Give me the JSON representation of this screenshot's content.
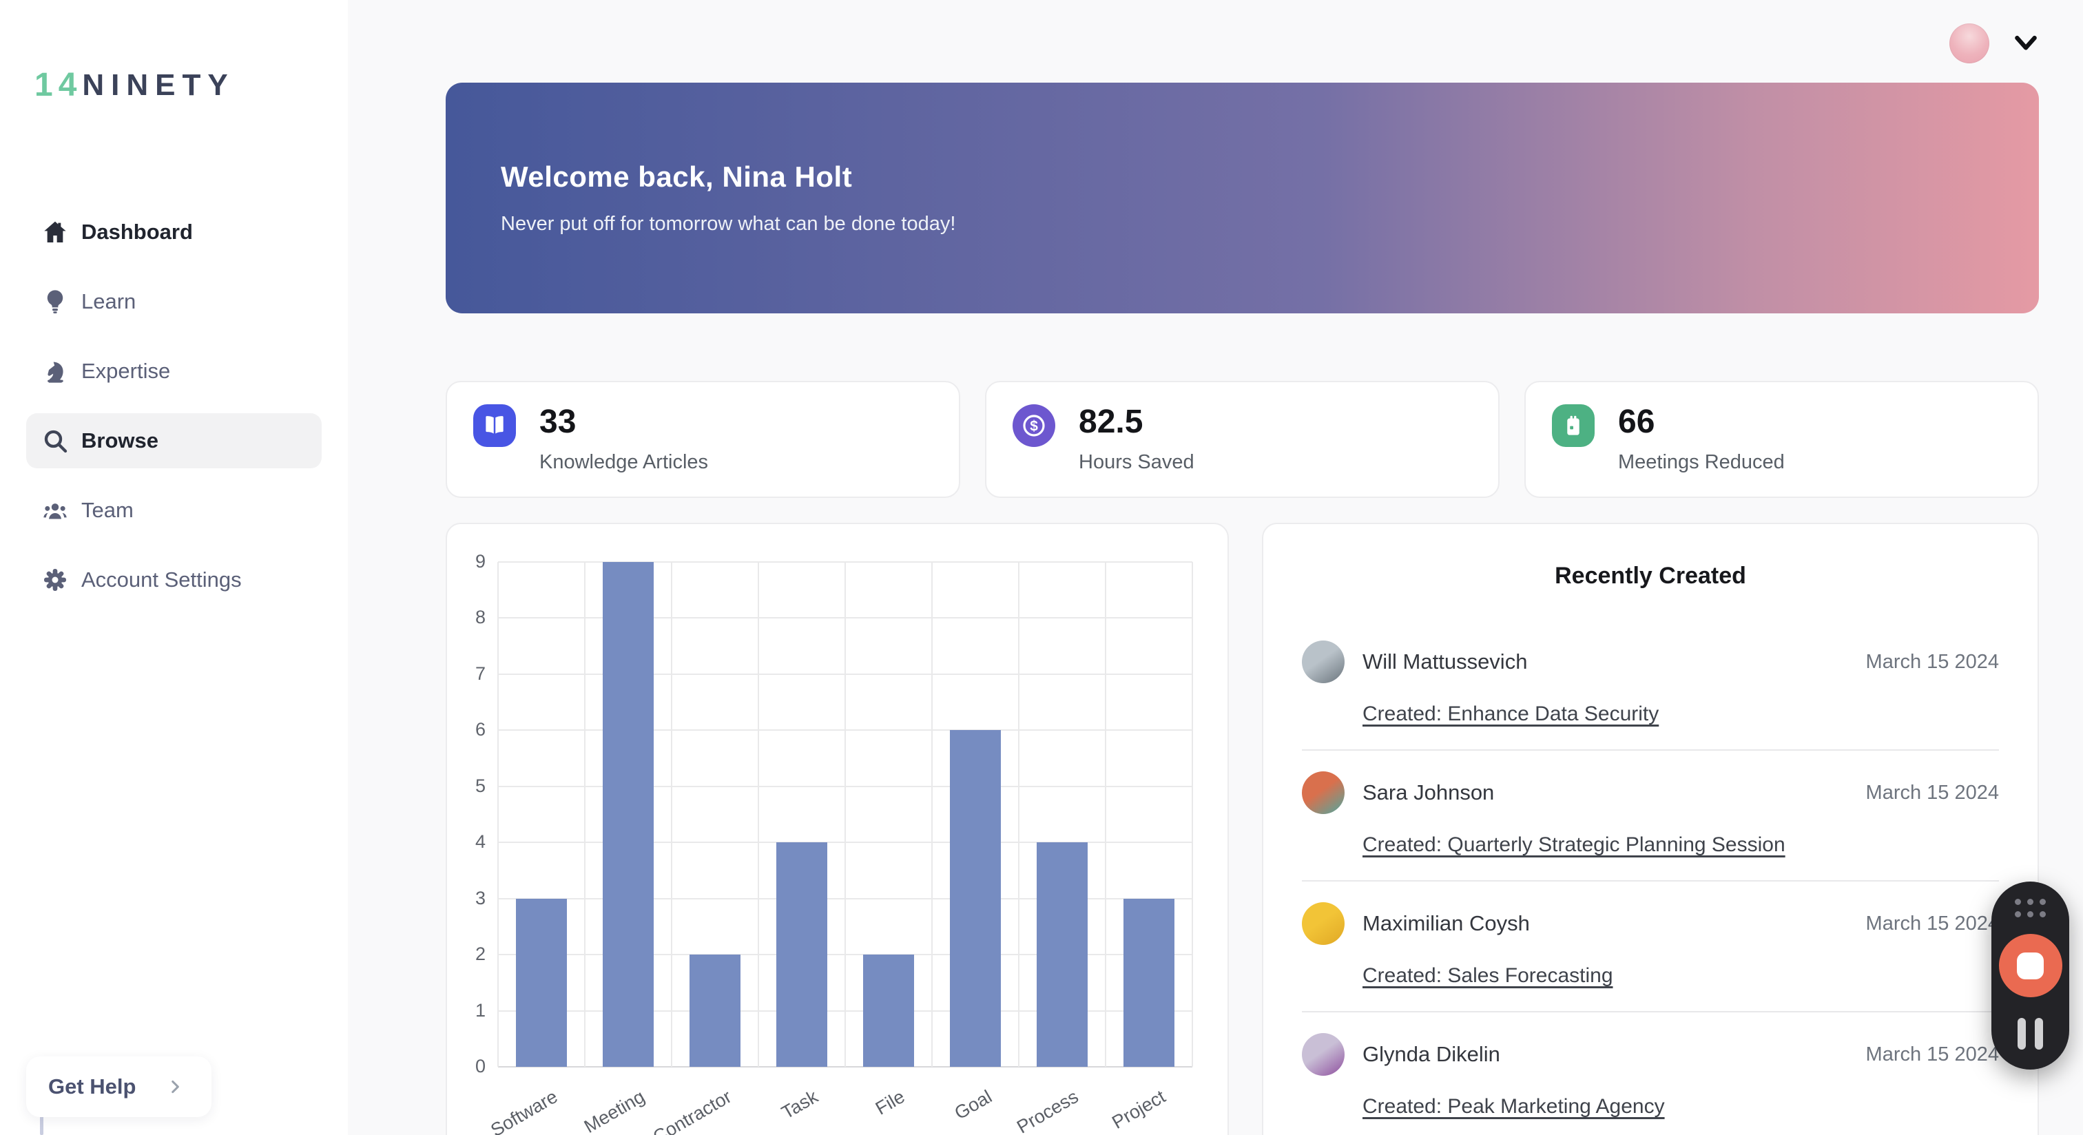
{
  "brand": {
    "part1": "14",
    "part2": "NINETY"
  },
  "sidebar": {
    "items": [
      {
        "label": "Dashboard",
        "icon": "home-icon"
      },
      {
        "label": "Learn",
        "icon": "lightbulb-icon"
      },
      {
        "label": "Expertise",
        "icon": "knight-icon"
      },
      {
        "label": "Browse",
        "icon": "search-icon",
        "selected": true
      },
      {
        "label": "Team",
        "icon": "team-icon"
      },
      {
        "label": "Account Settings",
        "icon": "gear-icon"
      }
    ],
    "get_help_label": "Get Help"
  },
  "banner": {
    "title": "Welcome back, Nina Holt",
    "subtitle": "Never put off for tomorrow what can be done today!",
    "gradient_from": "#46589a",
    "gradient_mid": "#7570a6",
    "gradient_late": "#c08fa6",
    "gradient_to": "#e59aa4"
  },
  "stats": [
    {
      "value": "33",
      "label": "Knowledge Articles",
      "icon": "book-icon",
      "color": "#4855e4",
      "shape": "rounded"
    },
    {
      "value": "82.5",
      "label": "Hours Saved",
      "icon": "dollar-icon",
      "color": "#6d57cf",
      "shape": "circle"
    },
    {
      "value": "66",
      "label": "Meetings Reduced",
      "icon": "calendar-icon",
      "color": "#4db183",
      "shape": "rounded"
    }
  ],
  "chart_data": {
    "type": "bar",
    "categories": [
      "Software",
      "Meeting",
      "Contractor",
      "Task",
      "File",
      "Goal",
      "Process",
      "Project"
    ],
    "values": [
      3,
      9,
      2,
      4,
      2,
      6,
      4,
      3
    ],
    "title": "",
    "xlabel": "",
    "ylabel": "",
    "ylim": [
      0,
      9
    ],
    "yticks": [
      0,
      1,
      2,
      3,
      4,
      5,
      6,
      7,
      8,
      9
    ],
    "grid": true,
    "legend": false,
    "bar_color": "#768cc1"
  },
  "recent": {
    "title": "Recently Created",
    "items": [
      {
        "name": "Will Mattussevich",
        "date": "March 15 2024",
        "link": "Created: Enhance Data Security",
        "avatar_colors": [
          "#b9c2c9",
          "#6a747c"
        ]
      },
      {
        "name": "Sara Johnson",
        "date": "March 15 2024",
        "link": "Created: Quarterly Strategic Planning Session",
        "avatar_colors": [
          "#d9704d",
          "#4fa8a0"
        ]
      },
      {
        "name": "Maximilian Coysh",
        "date": "March 15 2024",
        "link": "Created: Sales Forecasting",
        "avatar_colors": [
          "#f2c437",
          "#e0a825"
        ]
      },
      {
        "name": "Glynda Dikelin",
        "date": "March 15 2024",
        "link": "Created: Peak Marketing Agency",
        "avatar_colors": [
          "#c9bfd6",
          "#8e4f9e"
        ]
      }
    ]
  },
  "topbar": {
    "avatar_color": "#eeb3bc"
  },
  "recorder": {
    "stop_color": "#ea6a51"
  }
}
